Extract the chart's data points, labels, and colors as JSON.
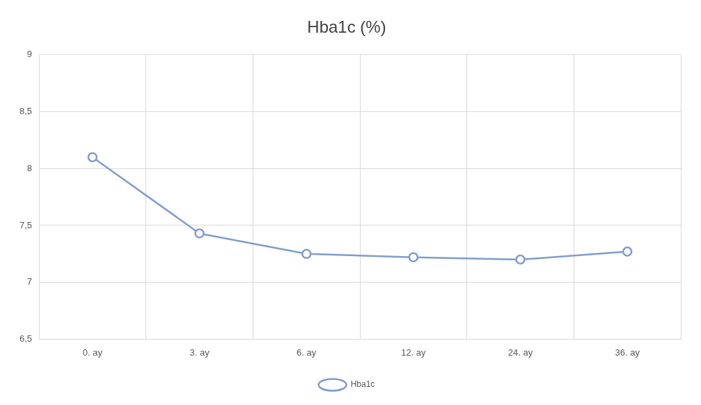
{
  "chart_data": {
    "type": "line",
    "title": "Hba1c (%)",
    "categories": [
      "0. ay",
      "3. ay",
      "6. ay",
      "12. ay",
      "24. ay",
      "36. ay"
    ],
    "series": [
      {
        "name": "Hba1c",
        "color": "#7f9ccf",
        "values": [
          8.1,
          7.43,
          7.25,
          7.22,
          7.2,
          7.27
        ]
      }
    ],
    "ylim": [
      6.5,
      9
    ],
    "yticks": [
      {
        "value": 6.5,
        "label": "6,5"
      },
      7,
      {
        "value": 7.5,
        "label": "7,5"
      },
      8,
      {
        "value": 8.5,
        "label": "8,5"
      },
      9
    ],
    "grid": true,
    "legend": "bottom",
    "marker": "circle",
    "line_style": "solid"
  }
}
